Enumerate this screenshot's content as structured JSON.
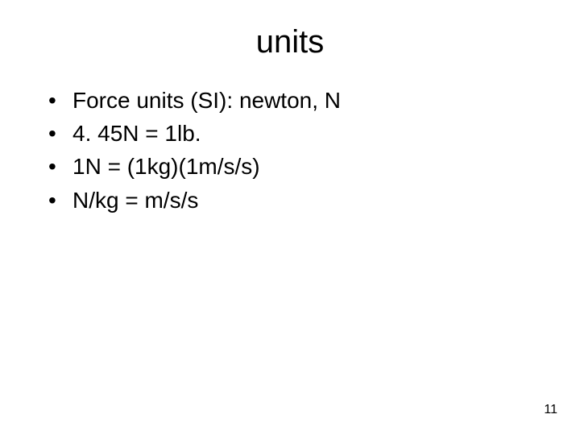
{
  "slide": {
    "title": "units",
    "bullets": [
      "Force units (SI): newton, N",
      "4. 45N = 1lb.",
      "1N = (1kg)(1m/s/s)",
      "N/kg = m/s/s"
    ],
    "page_number": "11",
    "colors": {
      "background": "#ffffff",
      "text": "#000000"
    },
    "typography": {
      "title_fontsize": 40,
      "body_fontsize": 28,
      "pagenum_fontsize": 16,
      "font_family": "Arial"
    }
  }
}
